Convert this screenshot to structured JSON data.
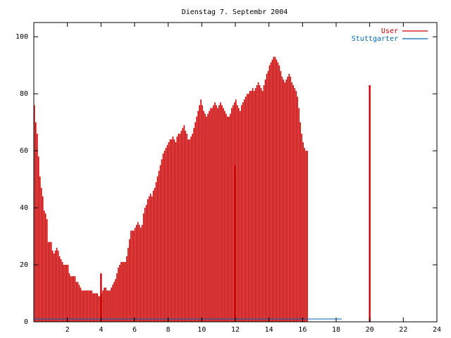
{
  "chart_data": {
    "type": "bar",
    "title": "Dienstag 7. Septembr 2004",
    "xlabel": "",
    "ylabel": "",
    "xlim": [
      0,
      24
    ],
    "ylim": [
      0,
      105
    ],
    "x_ticks": [
      2,
      4,
      6,
      8,
      10,
      12,
      14,
      16,
      18,
      20,
      22,
      24
    ],
    "y_ticks": [
      0,
      20,
      40,
      60,
      80,
      100
    ],
    "grid": false,
    "legend_position": "top-right",
    "bin_hours": 0.0833333,
    "series": [
      {
        "name": "User",
        "color": "#cc0000",
        "values": [
          76,
          70,
          66,
          58,
          51,
          47,
          44,
          39,
          38,
          36,
          28,
          28,
          28,
          25,
          24,
          25,
          26,
          25,
          23,
          22,
          21,
          20,
          20,
          20,
          20,
          17,
          16,
          16,
          16,
          16,
          14,
          14,
          13,
          12,
          11,
          11,
          11,
          11,
          11,
          11,
          11,
          11,
          10,
          10,
          10,
          10,
          9,
          9,
          10,
          11,
          12,
          12,
          11,
          11,
          11,
          12,
          13,
          14,
          15,
          17,
          19,
          20,
          21,
          21,
          21,
          21,
          23,
          26,
          29,
          32,
          32,
          32,
          33,
          34,
          35,
          34,
          33,
          34,
          38,
          40,
          41,
          43,
          44,
          45,
          44,
          46,
          47,
          49,
          51,
          53,
          55,
          57,
          59,
          60,
          61,
          62,
          63,
          64,
          64,
          65,
          64,
          63,
          65,
          66,
          66,
          67,
          68,
          69,
          67,
          66,
          64,
          64,
          65,
          66,
          68,
          70,
          72,
          74,
          76,
          78,
          76,
          74,
          73,
          72,
          73,
          74,
          75,
          75,
          76,
          77,
          76,
          75,
          76,
          77,
          76,
          75,
          74,
          73,
          72,
          72,
          73,
          75,
          76,
          77,
          78,
          76,
          75,
          74,
          76,
          77,
          78,
          79,
          80,
          80,
          81,
          81,
          82,
          81,
          82,
          83,
          84,
          83,
          82,
          81,
          83,
          85,
          87,
          88,
          90,
          91,
          92,
          93,
          93,
          92,
          91,
          90,
          88,
          86,
          85,
          84,
          85,
          86,
          87,
          86,
          84,
          83,
          82,
          81,
          79,
          75,
          70,
          66,
          63,
          61,
          60,
          60
        ]
      },
      {
        "name": "Stuttgarter",
        "color": "#0066b3",
        "values": [
          1,
          1,
          1,
          1,
          1,
          1,
          1,
          1,
          1,
          1,
          1,
          1,
          1,
          1,
          1,
          1,
          1,
          1,
          1,
          1,
          1,
          1,
          1,
          1,
          1,
          1,
          1,
          1,
          1,
          1,
          1,
          1,
          1,
          1,
          1,
          1,
          1,
          1,
          1,
          1,
          1,
          1,
          1,
          1,
          1,
          1,
          1,
          1,
          1,
          1,
          1,
          1,
          1,
          1,
          1,
          1,
          1,
          1,
          1,
          1,
          1,
          1,
          1,
          1,
          1,
          1,
          1,
          1,
          1,
          1,
          1,
          1,
          1,
          1,
          1,
          1,
          1,
          1,
          1,
          1,
          1,
          1,
          1,
          1,
          1,
          1,
          1,
          1,
          1,
          1,
          1,
          1,
          1,
          1,
          1,
          1,
          1,
          1,
          1,
          1,
          1,
          1,
          1,
          1,
          1,
          1,
          1,
          1,
          1,
          1,
          1,
          1,
          1,
          1,
          1,
          1,
          1,
          1,
          1,
          1,
          1,
          1,
          1,
          1,
          1,
          1,
          1,
          1,
          1,
          1,
          1,
          1,
          1,
          1,
          1,
          1,
          1,
          1,
          1,
          1,
          1,
          1,
          1,
          1,
          1,
          1,
          1,
          1,
          1,
          1,
          1,
          1,
          1,
          1,
          1,
          1,
          1,
          1,
          1,
          1,
          1,
          1,
          1,
          1,
          1,
          1,
          1,
          1,
          1,
          1,
          1,
          1,
          1,
          1,
          1,
          1,
          1,
          1,
          1,
          1,
          1,
          1,
          1,
          1,
          1,
          1,
          1,
          1,
          1,
          1,
          1,
          1,
          1,
          1,
          1,
          1,
          1,
          1,
          1,
          1,
          1,
          1,
          1,
          1,
          1,
          1,
          1,
          1,
          1,
          1,
          1,
          1,
          1,
          1,
          1,
          1,
          1,
          1,
          1,
          1
        ]
      }
    ],
    "spikes": [
      {
        "x": 4.0,
        "value": 17,
        "series": "User"
      },
      {
        "x": 12.0,
        "value": 55,
        "series": "User"
      },
      {
        "x": 20.0,
        "value": 83,
        "series": "User"
      }
    ]
  }
}
